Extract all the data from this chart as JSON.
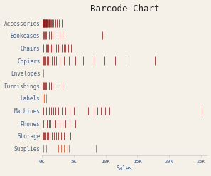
{
  "title": "Barcode Chart",
  "xlabel": "Sales",
  "background_color": "#f5f0e8",
  "bar_color_dense": "#8b1a1a",
  "bar_color_sparse": "#cc5533",
  "categories": [
    "Accessories",
    "Bookcases",
    "Chairs",
    "Copiers",
    "Envelopes",
    "Furnishings",
    "Labels",
    "Machines",
    "Phones",
    "Storage",
    "Supplies"
  ],
  "xlim": [
    0,
    26000
  ],
  "xticks": [
    0,
    5000,
    10000,
    15000,
    20000,
    25000
  ],
  "xticklabels": [
    "0K",
    "5K",
    "10K",
    "15K",
    "20K",
    "25K"
  ],
  "title_fontsize": 9,
  "label_fontsize": 5.5,
  "tick_fontsize": 5,
  "font_family": "monospace",
  "category_sales": {
    "Accessories": [
      50,
      100,
      150,
      200,
      230,
      260,
      300,
      340,
      380,
      420,
      460,
      500,
      550,
      600,
      650,
      700,
      750,
      800,
      860,
      920,
      980,
      1050,
      1130,
      1220,
      1320,
      1450,
      1600,
      1800,
      2050,
      2350,
      2700,
      3100
    ],
    "Bookcases": [
      150,
      300,
      500,
      700,
      900,
      1100,
      1400,
      1700,
      2000,
      2400,
      2800,
      3200,
      3600,
      9500
    ],
    "Chairs": [
      200,
      400,
      600,
      800,
      1000,
      1200,
      1450,
      1700,
      1950,
      2200,
      2500,
      2800,
      3100,
      3400,
      3700,
      4100,
      4600
    ],
    "Copiers": [
      80,
      160,
      280,
      420,
      580,
      760,
      960,
      1200,
      1500,
      1850,
      2250,
      2750,
      3400,
      4200,
      5200,
      6500,
      8100,
      9800,
      11500,
      13200,
      17800
    ],
    "Envelopes": [
      200,
      450
    ],
    "Furnishings": [
      100,
      200,
      350,
      500,
      700,
      900,
      1100,
      1400,
      1700,
      2000,
      2400,
      3200
    ],
    "Labels": [
      100,
      300,
      600
    ],
    "Machines": [
      120,
      250,
      420,
      620,
      850,
      1100,
      1400,
      1750,
      2150,
      2600,
      3100,
      3700,
      4300,
      5000,
      7200,
      8100,
      8700,
      9300,
      9900,
      10600,
      25200
    ],
    "Phones": [
      200,
      450,
      750,
      1050,
      1350,
      1700,
      2050,
      2400,
      2800,
      3200,
      3700,
      4300,
      5200
    ],
    "Storage": [
      80,
      200,
      360,
      540,
      740,
      960,
      1220,
      1510,
      1830,
      2190,
      2580,
      3010,
      3490,
      4500
    ],
    "Supplies": [
      150,
      600,
      2500,
      3000,
      3500,
      3900,
      4200,
      8500
    ]
  }
}
